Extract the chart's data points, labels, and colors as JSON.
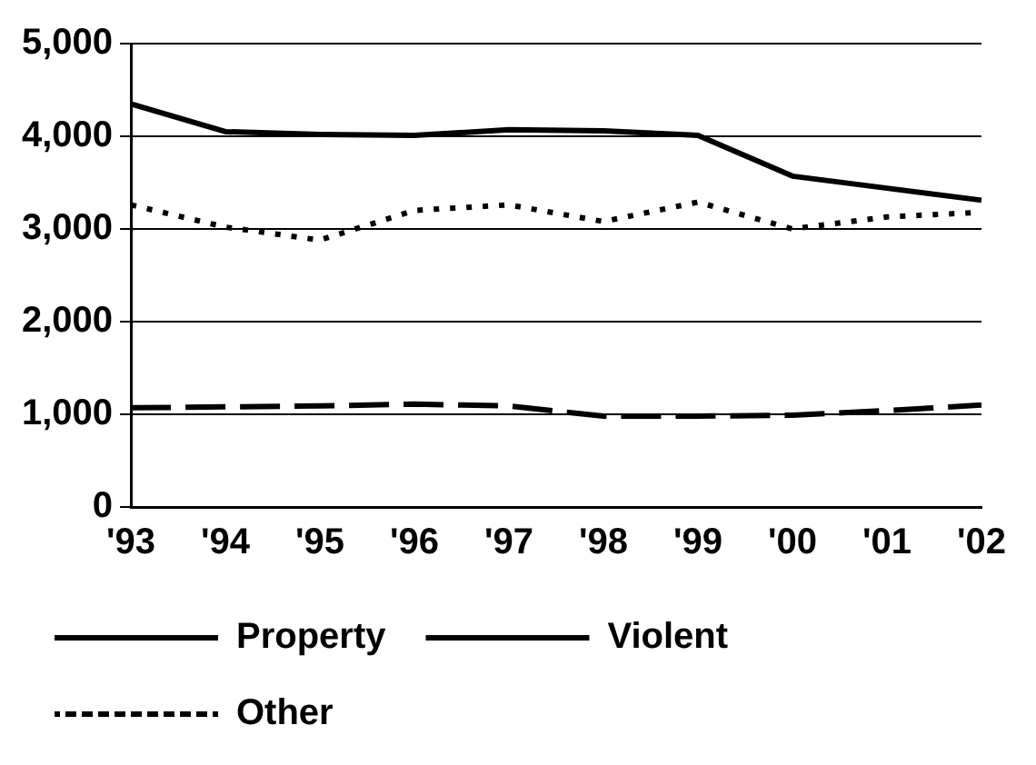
{
  "chart_data": {
    "type": "line",
    "categories": [
      "'93",
      "'94",
      "'95",
      "'96",
      "'97",
      "'98",
      "'99",
      "'00",
      "'01",
      "'02"
    ],
    "series": [
      {
        "name": "Property",
        "color": "#000000",
        "line_style": "solid",
        "values": [
          4350,
          4050,
          4020,
          4010,
          4070,
          4060,
          4010,
          3570,
          3440,
          3310
        ]
      },
      {
        "name": "Violent",
        "color": "#000000",
        "line_style": "dashed",
        "values": [
          1070,
          1080,
          1090,
          1110,
          1090,
          980,
          980,
          990,
          1040,
          1100
        ]
      },
      {
        "name": "Other",
        "color": "#000000",
        "line_style": "dotted",
        "values": [
          3260,
          3020,
          2880,
          3200,
          3260,
          3080,
          3290,
          3000,
          3130,
          3180
        ]
      }
    ],
    "ylim": [
      0,
      5000
    ],
    "yticks": [
      {
        "value": 0,
        "label": "0"
      },
      {
        "value": 1000,
        "label": "1,000"
      },
      {
        "value": 2000,
        "label": "2,000"
      },
      {
        "value": 3000,
        "label": "3,000"
      },
      {
        "value": 4000,
        "label": "4,000"
      },
      {
        "value": 5000,
        "label": "5,000"
      }
    ],
    "grid": "y",
    "legend": "bottom",
    "marker": "none"
  }
}
